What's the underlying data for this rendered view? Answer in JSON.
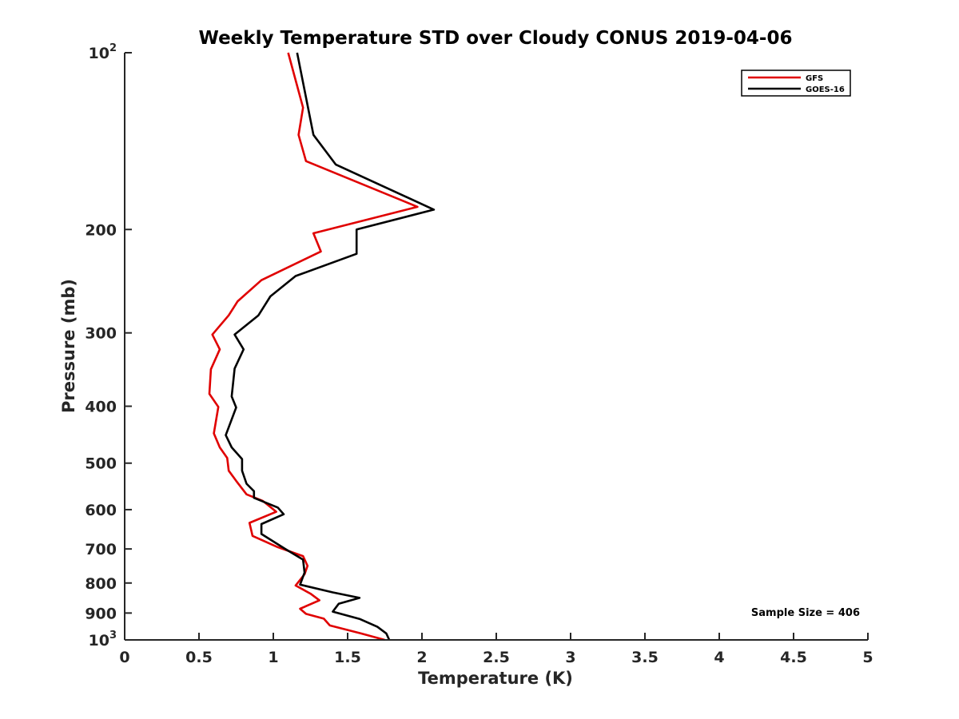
{
  "chart_data": {
    "type": "line",
    "title": "Weekly Temperature STD over Cloudy CONUS 2019-04-06",
    "xlabel": "Temperature (K)",
    "ylabel": "Pressure (mb)",
    "xlim": [
      0,
      5
    ],
    "ylim": [
      100,
      1000
    ],
    "y_scale": "log",
    "y_reversed": true,
    "grid": false,
    "legend_position": "top-right",
    "x_ticks": [
      "0",
      "0.5",
      "1",
      "1.5",
      "2",
      "2.5",
      "3",
      "3.5",
      "4",
      "4.5",
      "5"
    ],
    "x_tick_values": [
      0,
      0.5,
      1,
      1.5,
      2,
      2.5,
      3,
      3.5,
      4,
      4.5,
      5
    ],
    "y_ticks": [
      {
        "value": 100,
        "base": "10",
        "exp": "2"
      },
      {
        "value": 200,
        "label": "200"
      },
      {
        "value": 300,
        "label": "300"
      },
      {
        "value": 400,
        "label": "400"
      },
      {
        "value": 500,
        "label": "500"
      },
      {
        "value": 600,
        "label": "600"
      },
      {
        "value": 700,
        "label": "700"
      },
      {
        "value": 800,
        "label": "800"
      },
      {
        "value": 900,
        "label": "900"
      },
      {
        "value": 1000,
        "base": "10",
        "exp": "3"
      }
    ],
    "annotation": "Sample Size = 406",
    "series": [
      {
        "name": "GFS",
        "color": "#e00000",
        "points": [
          [
            1.1,
            100
          ],
          [
            1.2,
            124
          ],
          [
            1.17,
            138
          ],
          [
            1.22,
            153
          ],
          [
            1.97,
            183
          ],
          [
            1.27,
            203
          ],
          [
            1.32,
            218
          ],
          [
            0.92,
            244
          ],
          [
            0.76,
            265
          ],
          [
            0.7,
            280
          ],
          [
            0.59,
            302
          ],
          [
            0.64,
            320
          ],
          [
            0.58,
            346
          ],
          [
            0.57,
            381
          ],
          [
            0.63,
            401
          ],
          [
            0.6,
            445
          ],
          [
            0.64,
            470
          ],
          [
            0.69,
            490
          ],
          [
            0.7,
            515
          ],
          [
            0.75,
            536
          ],
          [
            0.82,
            565
          ],
          [
            0.93,
            580
          ],
          [
            1.02,
            605
          ],
          [
            0.84,
            632
          ],
          [
            0.86,
            665
          ],
          [
            1.03,
            695
          ],
          [
            1.2,
            720
          ],
          [
            1.23,
            748
          ],
          [
            1.21,
            773
          ],
          [
            1.15,
            808
          ],
          [
            1.25,
            834
          ],
          [
            1.31,
            856
          ],
          [
            1.18,
            885
          ],
          [
            1.22,
            903
          ],
          [
            1.34,
            920
          ],
          [
            1.38,
            945
          ],
          [
            1.59,
            975
          ],
          [
            1.75,
            1000
          ]
        ]
      },
      {
        "name": "GOES-16",
        "color": "#000000",
        "points": [
          [
            1.16,
            100
          ],
          [
            1.27,
            138
          ],
          [
            1.42,
            155
          ],
          [
            2.08,
            185
          ],
          [
            1.56,
            200
          ],
          [
            1.56,
            220
          ],
          [
            1.15,
            240
          ],
          [
            0.98,
            260
          ],
          [
            0.9,
            280
          ],
          [
            0.74,
            302
          ],
          [
            0.8,
            320
          ],
          [
            0.74,
            345
          ],
          [
            0.72,
            385
          ],
          [
            0.75,
            402
          ],
          [
            0.68,
            448
          ],
          [
            0.72,
            470
          ],
          [
            0.79,
            492
          ],
          [
            0.79,
            515
          ],
          [
            0.82,
            542
          ],
          [
            0.87,
            558
          ],
          [
            0.87,
            573
          ],
          [
            1.03,
            595
          ],
          [
            1.07,
            611
          ],
          [
            0.92,
            635
          ],
          [
            0.92,
            660
          ],
          [
            1.08,
            700
          ],
          [
            1.2,
            730
          ],
          [
            1.21,
            768
          ],
          [
            1.18,
            805
          ],
          [
            1.4,
            830
          ],
          [
            1.58,
            848
          ],
          [
            1.44,
            868
          ],
          [
            1.4,
            895
          ],
          [
            1.58,
            921
          ],
          [
            1.7,
            950
          ],
          [
            1.76,
            975
          ],
          [
            1.78,
            1000
          ]
        ]
      }
    ]
  }
}
